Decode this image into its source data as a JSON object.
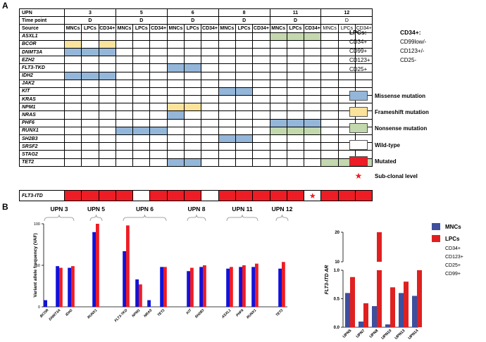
{
  "panel_a": {
    "label": "A",
    "header": {
      "upn_label": "UPN",
      "timepoint_label": "Time point",
      "source_label": "Source",
      "patients": [
        {
          "upn": "3",
          "timepoint": "D"
        },
        {
          "upn": "5",
          "timepoint": "D"
        },
        {
          "upn": "6",
          "timepoint": "D"
        },
        {
          "upn": "8",
          "timepoint": "D"
        },
        {
          "upn": "11",
          "timepoint": "D"
        },
        {
          "upn": "12",
          "timepoint": "D"
        }
      ],
      "sources": [
        "MNCs",
        "LPCs",
        "CD34+"
      ]
    },
    "genes": [
      {
        "name": "ASXL1",
        "cells": [
          "",
          "",
          "",
          "",
          "",
          "",
          "",
          "",
          "",
          "",
          "",
          "",
          "n",
          "n",
          "n",
          "",
          "",
          ""
        ]
      },
      {
        "name": "BCOR",
        "cells": [
          "f",
          "",
          "f",
          "",
          "",
          "",
          "",
          "",
          "",
          "",
          "",
          "",
          "",
          "",
          "",
          "",
          "",
          ""
        ]
      },
      {
        "name": "DNMT3A",
        "cells": [
          "m",
          "m",
          "m",
          "",
          "",
          "",
          "",
          "",
          "",
          "",
          "",
          "",
          "",
          "",
          "",
          "",
          "",
          ""
        ]
      },
      {
        "name": "EZH2",
        "cells": [
          "",
          "",
          "",
          "",
          "",
          "",
          "",
          "",
          "",
          "",
          "",
          "",
          "",
          "",
          "",
          "",
          "",
          ""
        ]
      },
      {
        "name": "FLT3-TKD",
        "cells": [
          "",
          "",
          "",
          "",
          "",
          "",
          "m",
          "m",
          "",
          "",
          "",
          "",
          "",
          "",
          "",
          "",
          "",
          ""
        ]
      },
      {
        "name": "IDH2",
        "cells": [
          "m",
          "m",
          "m",
          "",
          "",
          "",
          "",
          "",
          "",
          "",
          "",
          "",
          "",
          "",
          "",
          "",
          "",
          ""
        ]
      },
      {
        "name": "JAK2",
        "cells": [
          "",
          "",
          "",
          "",
          "",
          "",
          "",
          "",
          "",
          "",
          "",
          "",
          "",
          "",
          "",
          "",
          "",
          ""
        ]
      },
      {
        "name": "KIT",
        "cells": [
          "",
          "",
          "",
          "",
          "",
          "",
          "",
          "",
          "",
          "m",
          "m",
          "",
          "",
          "",
          "",
          "",
          "",
          ""
        ]
      },
      {
        "name": "KRAS",
        "cells": [
          "",
          "",
          "",
          "",
          "",
          "",
          "",
          "",
          "",
          "",
          "",
          "",
          "",
          "",
          "",
          "",
          "",
          ""
        ]
      },
      {
        "name": "NPM1",
        "cells": [
          "",
          "",
          "",
          "",
          "",
          "",
          "f",
          "f",
          "",
          "",
          "",
          "",
          "",
          "",
          "",
          "",
          "",
          ""
        ]
      },
      {
        "name": "NRAS",
        "cells": [
          "",
          "",
          "",
          "",
          "",
          "",
          "m",
          "",
          "",
          "",
          "",
          "",
          "",
          "",
          "",
          "",
          "",
          ""
        ]
      },
      {
        "name": "PHF6",
        "cells": [
          "",
          "",
          "",
          "",
          "",
          "",
          "",
          "",
          "",
          "",
          "",
          "",
          "m",
          "m",
          "m",
          "",
          "",
          ""
        ]
      },
      {
        "name": "RUNX1",
        "cells": [
          "",
          "",
          "",
          "m",
          "m",
          "m",
          "",
          "",
          "",
          "",
          "",
          "",
          "n",
          "n",
          "n",
          "",
          "",
          ""
        ]
      },
      {
        "name": "SH2B3",
        "cells": [
          "",
          "",
          "",
          "",
          "",
          "",
          "",
          "",
          "",
          "m",
          "m",
          "",
          "",
          "",
          "",
          "",
          "",
          ""
        ]
      },
      {
        "name": "SRSF2",
        "cells": [
          "",
          "",
          "",
          "",
          "",
          "",
          "",
          "",
          "",
          "",
          "",
          "",
          "",
          "",
          "",
          "",
          "",
          ""
        ]
      },
      {
        "name": "STAG2",
        "cells": [
          "",
          "",
          "",
          "",
          "",
          "",
          "",
          "",
          "",
          "",
          "",
          "",
          "",
          "",
          "",
          "",
          "",
          ""
        ]
      },
      {
        "name": "TET2",
        "cells": [
          "",
          "",
          "",
          "",
          "",
          "",
          "m",
          "m",
          "",
          "",
          "",
          "",
          "",
          "",
          "",
          "n",
          "n",
          "n"
        ]
      }
    ],
    "flt3_itd": {
      "name": "FLT3-ITD",
      "cells": [
        "r",
        "r",
        "r",
        "r",
        "",
        "r",
        "r",
        "r",
        "",
        "r",
        "r",
        "r",
        "r",
        "r",
        "s",
        "r",
        "r",
        "r"
      ]
    },
    "phenotypes": {
      "lpcs_title": "LPCs:",
      "lpcs": [
        "CD34+",
        "CD99+",
        "CD123+",
        "CD25+"
      ],
      "cd34_title": "CD34+:",
      "cd34": [
        "CD99low/-",
        "CD123+/-",
        "CD25-"
      ]
    },
    "legend": [
      {
        "key": "missense",
        "label": "Missense mutation",
        "color": "#94b6d9"
      },
      {
        "key": "frameshift",
        "label": "Frameshift mutation",
        "color": "#fbe39c"
      },
      {
        "key": "nonsense",
        "label": "Nonsense mutation",
        "color": "#c3d8ae"
      },
      {
        "key": "wildtype",
        "label": "Wild-type",
        "color": "#ffffff"
      },
      {
        "key": "mutated",
        "label": "Mutated",
        "color": "#ee1c24"
      },
      {
        "key": "subclonal",
        "label": "Sub-clonal level",
        "symbol": "★",
        "color": "#ee1c24"
      }
    ]
  },
  "panel_b": {
    "label": "B",
    "colors": {
      "mncs": "#1212d8",
      "lpcs": "#ee1c24",
      "legend_mncs": "#3d4f9d",
      "legend_lpcs": "#e02020",
      "bar_mncs_right": "#3d4f9d",
      "bar_lpcs_right": "#e02020"
    },
    "phenotype_list": [
      "CD34+",
      "CD123+",
      "CD25+",
      "CD99+"
    ]
  },
  "chart_data": [
    {
      "type": "bar",
      "title": "",
      "ylabel": "Variant allele frequency (VAF)",
      "xlabel": "",
      "ylim": [
        0,
        100
      ],
      "yticks": [
        0,
        50,
        100
      ],
      "groups": [
        {
          "label": "UPN 3",
          "genes": [
            "BCOR",
            "DNMT3A",
            "IDH2"
          ]
        },
        {
          "label": "UPN 5",
          "genes": [
            "RUNX1"
          ]
        },
        {
          "label": "UPN 6",
          "genes": [
            "FLT3-TKD",
            "NPM1",
            "NRAS",
            "TET2"
          ]
        },
        {
          "label": "UPN 8",
          "genes": [
            "KIT",
            "SH2B3"
          ]
        },
        {
          "label": "UPN 11",
          "genes": [
            "ASXL1",
            "PHF6",
            "RUNX1"
          ]
        },
        {
          "label": "UPN 12",
          "genes": [
            "TET2"
          ]
        }
      ],
      "categories": [
        "BCOR",
        "DNMT3A",
        "IDH2",
        "RUNX1",
        "FLT3-TKD",
        "NPM1",
        "NRAS",
        "TET2",
        "KIT",
        "SH2B3",
        "ASXL1",
        "PHF6",
        "RUNX1",
        "TET2"
      ],
      "series": [
        {
          "name": "MNCs",
          "values": [
            8,
            49,
            47,
            90,
            67,
            33,
            8,
            48,
            43,
            48,
            46,
            48,
            48,
            46
          ]
        },
        {
          "name": "LPCs",
          "values": [
            null,
            47,
            49,
            100,
            98,
            27,
            null,
            48,
            47,
            50,
            48,
            50,
            52,
            54
          ]
        }
      ]
    },
    {
      "type": "bar",
      "title": "",
      "ylabel": "FLT3-ITD AR",
      "xlabel": "",
      "axis_break": true,
      "ylim_lower": [
        0,
        1.0
      ],
      "ylim_upper": [
        10,
        20
      ],
      "yticks": [
        "0.0",
        "0.5",
        "1.0",
        "10",
        "20"
      ],
      "categories": [
        "UPN5",
        "UPN7",
        "UPN8",
        "UPN10",
        "UPN13",
        "UPN14"
      ],
      "series": [
        {
          "name": "MNCs",
          "values": [
            0.6,
            0.1,
            0.37,
            0.05,
            0.6,
            0.55
          ]
        },
        {
          "name": "LPCs",
          "values": [
            0.88,
            0.42,
            20,
            0.7,
            0.8,
            1.0
          ]
        }
      ],
      "legend": [
        "MNCs",
        "LPCs"
      ]
    }
  ]
}
